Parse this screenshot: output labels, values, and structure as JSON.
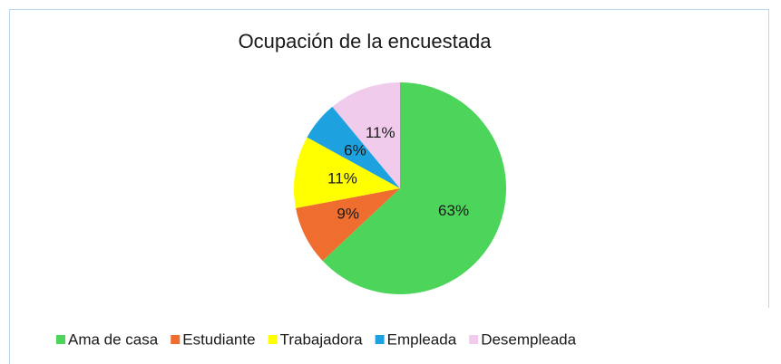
{
  "chart_data": {
    "type": "pie",
    "title": "Ocupación de la encuestada",
    "categories": [
      "Ama de casa",
      "Estudiante",
      "Trabajadora",
      "Empleada",
      "Desempleada"
    ],
    "values": [
      63,
      9,
      11,
      6,
      11
    ],
    "value_labels": [
      "63%",
      "9%",
      "11%",
      "6%",
      "11%"
    ],
    "colors": [
      "#4cd55a",
      "#ef6d2e",
      "#ffff00",
      "#1ea2df",
      "#f1cbeb"
    ],
    "legend": "bottom"
  }
}
